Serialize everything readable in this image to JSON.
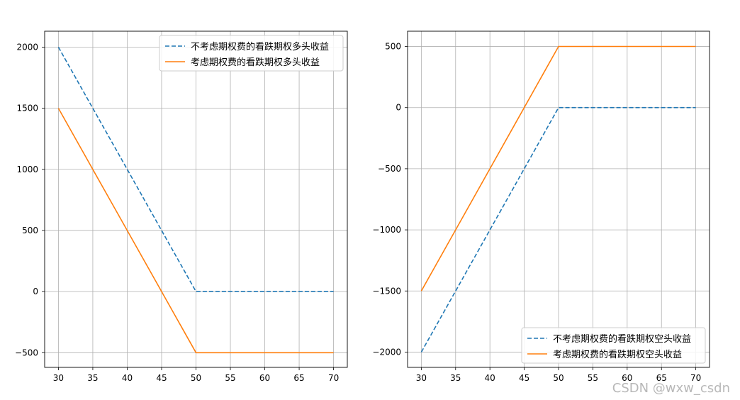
{
  "chart_data": [
    {
      "type": "line",
      "x": [
        30,
        35,
        40,
        45,
        50,
        55,
        60,
        65,
        70
      ],
      "xlim": [
        28,
        72
      ],
      "ylim": [
        -620,
        2130
      ],
      "xticks": [
        30,
        35,
        40,
        45,
        50,
        55,
        60,
        65,
        70
      ],
      "yticks": [
        -500,
        0,
        500,
        1000,
        1500,
        2000
      ],
      "grid": true,
      "legend_position": "top-right",
      "series": [
        {
          "name": "不考虑期权费的看跌期权多头收益",
          "values": [
            2000,
            1500,
            1000,
            500,
            0,
            0,
            0,
            0,
            0
          ],
          "color": "#1f77b4",
          "style": "dashed"
        },
        {
          "name": "考虑期权费的看跌期权多头收益",
          "values": [
            1500,
            1000,
            500,
            0,
            -500,
            -500,
            -500,
            -500,
            -500
          ],
          "color": "#ff7f0e",
          "style": "solid"
        }
      ]
    },
    {
      "type": "line",
      "x": [
        30,
        35,
        40,
        45,
        50,
        55,
        60,
        65,
        70
      ],
      "xlim": [
        28,
        72
      ],
      "ylim": [
        -2125,
        625
      ],
      "xticks": [
        30,
        35,
        40,
        45,
        50,
        55,
        60,
        65,
        70
      ],
      "yticks": [
        -2000,
        -1500,
        -1000,
        -500,
        0,
        500
      ],
      "grid": true,
      "legend_position": "bottom-right",
      "series": [
        {
          "name": "不考虑期权费的看跌期权空头收益",
          "values": [
            -2000,
            -1500,
            -1000,
            -500,
            0,
            0,
            0,
            0,
            0
          ],
          "color": "#1f77b4",
          "style": "dashed"
        },
        {
          "name": "考虑期权费的看跌期权空头收益",
          "values": [
            -1500,
            -1000,
            -500,
            0,
            500,
            500,
            500,
            500,
            500
          ],
          "color": "#ff7f0e",
          "style": "solid"
        }
      ]
    }
  ],
  "watermark": "CSDN @wxw_csdn"
}
